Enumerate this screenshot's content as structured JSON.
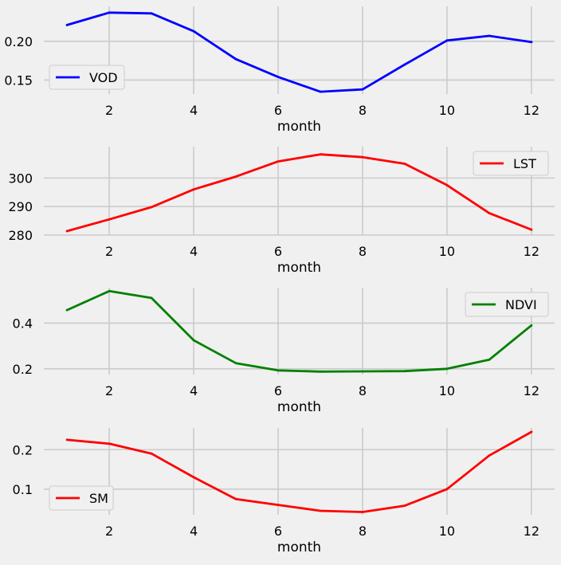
{
  "figure": {
    "background": "#f0f0f0",
    "grid_color": "#cbcbcb"
  },
  "chart_data": [
    {
      "type": "line",
      "xlabel": "month",
      "ylabel": "",
      "x": [
        1,
        2,
        3,
        4,
        5,
        6,
        7,
        8,
        9,
        10,
        11,
        12
      ],
      "xticks": [
        "2",
        "4",
        "6",
        "8",
        "10",
        "12"
      ],
      "xlim": [
        0.45,
        12.55
      ],
      "ylim": [
        0.132,
        0.245
      ],
      "yticks": [
        "0.15",
        "0.20"
      ],
      "grid": true,
      "legend_position": "lower-left",
      "series": [
        {
          "name": "VOD",
          "color": "#0000ff",
          "values": [
            0.221,
            0.237,
            0.236,
            0.213,
            0.177,
            0.154,
            0.135,
            0.138,
            0.17,
            0.201,
            0.207,
            0.199
          ]
        }
      ]
    },
    {
      "type": "line",
      "xlabel": "month",
      "ylabel": "",
      "x": [
        1,
        2,
        3,
        4,
        5,
        6,
        7,
        8,
        9,
        10,
        11,
        12
      ],
      "xticks": [
        "2",
        "4",
        "6",
        "8",
        "10",
        "12"
      ],
      "xlim": [
        0.45,
        12.55
      ],
      "ylim": [
        280,
        311
      ],
      "yticks": [
        "280",
        "290",
        "300"
      ],
      "grid": true,
      "legend_position": "upper-right",
      "series": [
        {
          "name": "LST",
          "color": "#ff0000",
          "values": [
            281.4,
            285.5,
            289.8,
            296,
            300.5,
            305.8,
            308.3,
            307.3,
            305,
            297.5,
            287.7,
            281.9
          ]
        }
      ]
    },
    {
      "type": "line",
      "xlabel": "month",
      "ylabel": "",
      "x": [
        1,
        2,
        3,
        4,
        5,
        6,
        7,
        8,
        9,
        10,
        11,
        12
      ],
      "xticks": [
        "2",
        "4",
        "6",
        "8",
        "10",
        "12"
      ],
      "xlim": [
        0.45,
        12.55
      ],
      "ylim": [
        0.175,
        0.555
      ],
      "yticks": [
        "0.2",
        "0.4"
      ],
      "grid": true,
      "legend_position": "upper-right",
      "series": [
        {
          "name": "NDVI",
          "color": "#008000",
          "values": [
            0.457,
            0.54,
            0.51,
            0.325,
            0.225,
            0.193,
            0.188,
            0.189,
            0.19,
            0.2,
            0.24,
            0.39
          ]
        }
      ]
    },
    {
      "type": "line",
      "xlabel": "month",
      "ylabel": "",
      "x": [
        1,
        2,
        3,
        4,
        5,
        6,
        7,
        8,
        9,
        10,
        11,
        12
      ],
      "xticks": [
        "2",
        "4",
        "6",
        "8",
        "10",
        "12"
      ],
      "xlim": [
        0.45,
        12.55
      ],
      "ylim": [
        0.035,
        0.255
      ],
      "yticks": [
        "0.1",
        "0.2"
      ],
      "grid": true,
      "legend_position": "lower-left",
      "series": [
        {
          "name": "SM",
          "color": "#ff0000",
          "values": [
            0.225,
            0.215,
            0.19,
            0.13,
            0.075,
            0.06,
            0.045,
            0.042,
            0.058,
            0.1,
            0.185,
            0.245
          ]
        }
      ]
    }
  ]
}
